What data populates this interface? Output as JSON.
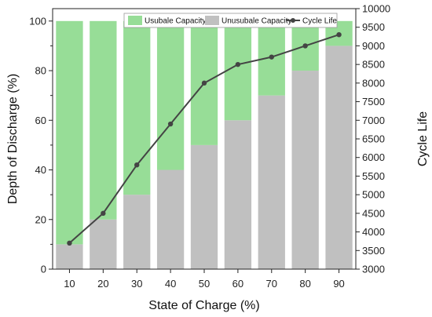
{
  "chart_data": {
    "type": "bar",
    "categories": [
      "10",
      "20",
      "30",
      "40",
      "50",
      "60",
      "70",
      "80",
      "90"
    ],
    "series": [
      {
        "name": "Unusubale Capacity",
        "kind": "bar-stack-bottom",
        "axis": "left",
        "color": "#c0c0c0",
        "values": [
          10,
          20,
          30,
          40,
          50,
          60,
          70,
          80,
          90
        ]
      },
      {
        "name": "Usubale Capacity",
        "kind": "bar-stack-top",
        "axis": "left",
        "color": "#97dd97",
        "values": [
          90,
          80,
          70,
          60,
          50,
          40,
          30,
          20,
          10
        ]
      },
      {
        "name": "Cycle Life",
        "kind": "line",
        "axis": "right",
        "color": "#444444",
        "values": [
          3700,
          4500,
          5800,
          6900,
          8000,
          8500,
          8700,
          9000,
          9300
        ]
      }
    ],
    "xlabel": "State of Charge (%)",
    "ylabel": "Depth of Discharge (%)",
    "y2label": "Cycle Life",
    "ylim": [
      0,
      105
    ],
    "y2lim": [
      3000,
      10000
    ],
    "yticks": [
      0,
      20,
      40,
      60,
      80,
      100
    ],
    "y2ticks": [
      3000,
      3500,
      4000,
      4500,
      5000,
      5500,
      6000,
      6500,
      7000,
      7500,
      8000,
      8500,
      9000,
      9500,
      10000
    ],
    "grid": false,
    "legend": {
      "placement": "top-right",
      "entries": [
        "Usubale Capacity",
        "Unusubale Capacity",
        "Cycle Life"
      ]
    }
  }
}
